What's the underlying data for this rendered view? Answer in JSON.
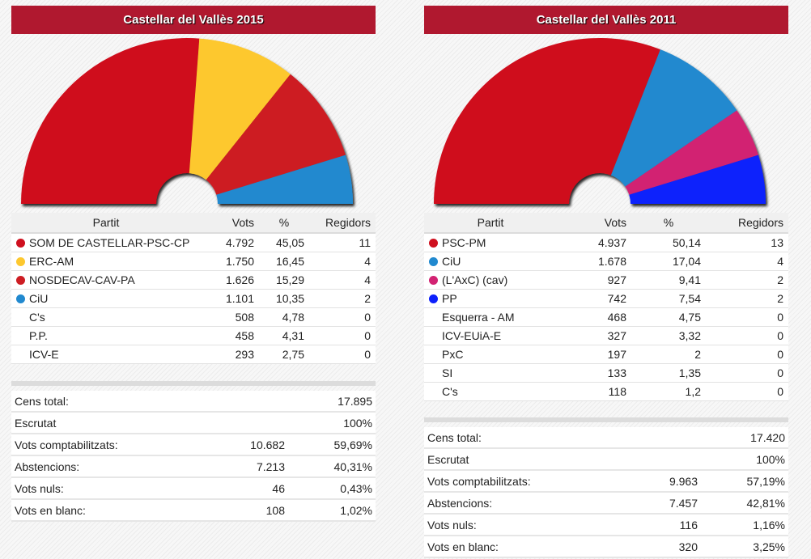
{
  "chart_data": [
    {
      "type": "pie",
      "variant": "semicircle-seats",
      "title": "Castellar del Vallès 2015",
      "columns": [
        "Partit",
        "Vots",
        "%",
        "Regidors"
      ],
      "parties": [
        {
          "name": "SOM DE CASTELLAR-PSC-CP",
          "votes": "4.792",
          "pct": "45,05",
          "seats": 11,
          "color": "#cf101f"
        },
        {
          "name": "ERC-AM",
          "votes": "1.750",
          "pct": "16,45",
          "seats": 4,
          "color": "#fdc82f"
        },
        {
          "name": "NOSDECAV-CAV-PA",
          "votes": "1.626",
          "pct": "15,29",
          "seats": 4,
          "color": "#cd1d23"
        },
        {
          "name": "CiU",
          "votes": "1.101",
          "pct": "10,35",
          "seats": 2,
          "color": "#2189cf"
        },
        {
          "name": "C's",
          "votes": "508",
          "pct": "4,78",
          "seats": 0,
          "color": null
        },
        {
          "name": "P.P.",
          "votes": "458",
          "pct": "4,31",
          "seats": 0,
          "color": null
        },
        {
          "name": "ICV-E",
          "votes": "293",
          "pct": "2,75",
          "seats": 0,
          "color": null
        }
      ],
      "summary": [
        {
          "label": "Cens total:",
          "value": "",
          "pct": "17.895"
        },
        {
          "label": "Escrutat",
          "value": "",
          "pct": "100%"
        },
        {
          "label": "Vots comptabilitzats:",
          "value": "10.682",
          "pct": "59,69%"
        },
        {
          "label": "Abstencions:",
          "value": "7.213",
          "pct": "40,31%"
        },
        {
          "label": "Vots nuls:",
          "value": "46",
          "pct": "0,43%"
        },
        {
          "label": "Vots en blanc:",
          "value": "108",
          "pct": "1,02%"
        }
      ]
    },
    {
      "type": "pie",
      "variant": "semicircle-seats",
      "title": "Castellar del Vallès 2011",
      "columns": [
        "Partit",
        "Vots",
        "%",
        "Regidors"
      ],
      "parties": [
        {
          "name": "PSC-PM",
          "votes": "4.937",
          "pct": "50,14",
          "seats": 13,
          "color": "#cf101f"
        },
        {
          "name": "CiU",
          "votes": "1.678",
          "pct": "17,04",
          "seats": 4,
          "color": "#2189cf"
        },
        {
          "name": "(L'AxC) (cav)",
          "votes": "927",
          "pct": "9,41",
          "seats": 2,
          "color": "#d22272"
        },
        {
          "name": "PP",
          "votes": "742",
          "pct": "7,54",
          "seats": 2,
          "color": "#0d20fc"
        },
        {
          "name": "Esquerra - AM",
          "votes": "468",
          "pct": "4,75",
          "seats": 0,
          "color": null
        },
        {
          "name": "ICV-EUiA-E",
          "votes": "327",
          "pct": "3,32",
          "seats": 0,
          "color": null
        },
        {
          "name": "PxC",
          "votes": "197",
          "pct": "2",
          "seats": 0,
          "color": null
        },
        {
          "name": "SI",
          "votes": "133",
          "pct": "1,35",
          "seats": 0,
          "color": null
        },
        {
          "name": "C's",
          "votes": "118",
          "pct": "1,2",
          "seats": 0,
          "color": null
        }
      ],
      "summary": [
        {
          "label": "Cens total:",
          "value": "",
          "pct": "17.420"
        },
        {
          "label": "Escrutat",
          "value": "",
          "pct": "100%"
        },
        {
          "label": "Vots comptabilitzats:",
          "value": "9.963",
          "pct": "57,19%"
        },
        {
          "label": "Abstencions:",
          "value": "7.457",
          "pct": "42,81%"
        },
        {
          "label": "Vots nuls:",
          "value": "116",
          "pct": "1,16%"
        },
        {
          "label": "Vots en blanc:",
          "value": "320",
          "pct": "3,25%"
        }
      ]
    }
  ],
  "colors": {
    "header_bg": "#b0182f"
  }
}
